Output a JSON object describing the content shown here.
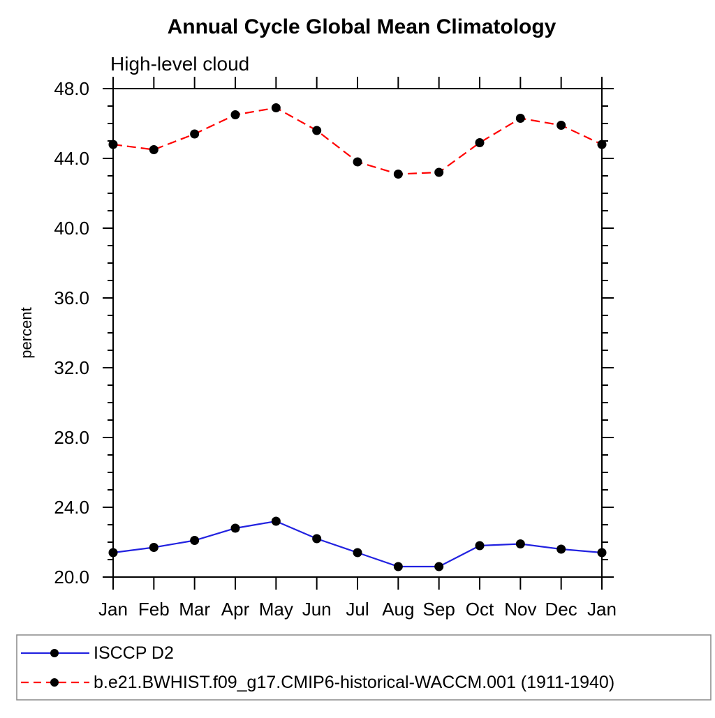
{
  "header": {
    "title": "Annual Cycle Global Mean Climatology",
    "subtitle": "High-level cloud"
  },
  "chart_data": {
    "type": "line",
    "title": "Annual Cycle Global Mean Climatology",
    "subtitle": "High-level cloud",
    "xlabel": "",
    "ylabel": "percent",
    "categories": [
      "Jan",
      "Feb",
      "Mar",
      "Apr",
      "May",
      "Jun",
      "Jul",
      "Aug",
      "Sep",
      "Oct",
      "Nov",
      "Dec",
      "Jan"
    ],
    "ylim": [
      20.0,
      48.0
    ],
    "ytick_step": 4.0,
    "yminor_step": 1.0,
    "ytick_labels": [
      "20.0",
      "24.0",
      "28.0",
      "32.0",
      "36.0",
      "40.0",
      "44.0",
      "48.0"
    ],
    "grid": false,
    "legend_position": "bottom",
    "series": [
      {
        "name": "ISCCP D2",
        "line_style": "solid",
        "color": "#2222e0",
        "marker": "filled-circle",
        "marker_color": "#000000",
        "values": [
          21.4,
          21.7,
          22.1,
          22.8,
          23.2,
          22.2,
          21.4,
          20.6,
          20.6,
          21.8,
          21.9,
          21.6,
          21.4
        ]
      },
      {
        "name": "b.e21.BWHIST.f09_g17.CMIP6-historical-WACCM.001 (1911-1940)",
        "line_style": "dashed",
        "color": "#ff0000",
        "marker": "filled-circle",
        "marker_color": "#000000",
        "values": [
          44.8,
          44.5,
          45.4,
          46.5,
          46.9,
          45.6,
          43.8,
          43.1,
          43.2,
          44.9,
          46.3,
          45.9,
          44.8
        ]
      }
    ],
    "colors": {
      "axis": "#000000",
      "legend_border": "#888888",
      "background": "#ffffff"
    }
  }
}
